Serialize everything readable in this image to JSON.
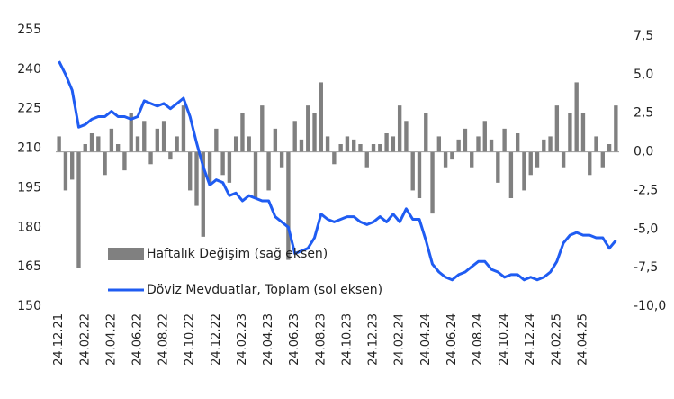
{
  "chart_data": {
    "type": "combo",
    "categories": [
      "24.12.21",
      null,
      null,
      null,
      "24.02.22",
      null,
      null,
      null,
      "24.04.22",
      null,
      null,
      null,
      "24.06.22",
      null,
      null,
      null,
      "24.08.22",
      null,
      null,
      null,
      "24.10.22",
      null,
      null,
      null,
      "24.12.22",
      null,
      null,
      null,
      "24.02.23",
      null,
      null,
      null,
      "24.04.23",
      null,
      null,
      null,
      "24.06.23",
      null,
      null,
      null,
      "24.08.23",
      null,
      null,
      null,
      "24.10.23",
      null,
      null,
      null,
      "24.12.23",
      null,
      null,
      null,
      "24.02.24",
      null,
      null,
      null,
      "24.04.24",
      null,
      null,
      null,
      "24.06.24",
      null,
      null,
      null,
      "24.08.24",
      null,
      null,
      null,
      "24.10.24",
      null,
      null,
      null,
      "24.12.24",
      null,
      null,
      null,
      "24.02.25",
      null,
      null,
      null,
      "24.04.25",
      null,
      null,
      null,
      null,
      null
    ],
    "series": [
      {
        "name": "Haftalık Değişim (sağ eksen)",
        "type": "bar",
        "axis": "y2",
        "color": "#808080",
        "values": [
          1.0,
          -2.5,
          -1.8,
          -7.5,
          0.5,
          1.2,
          1.0,
          -1.5,
          1.5,
          0.5,
          -1.2,
          2.5,
          1.0,
          2.0,
          -0.8,
          1.5,
          2.0,
          -0.5,
          1.0,
          3.0,
          -2.5,
          -3.5,
          -5.5,
          -2.0,
          1.5,
          -1.5,
          -2.0,
          1.0,
          2.5,
          1.0,
          -3.0,
          3.0,
          -2.5,
          1.5,
          -1.0,
          -7.0,
          2.0,
          0.8,
          3.0,
          2.5,
          4.5,
          1.0,
          -0.8,
          0.5,
          1.0,
          0.8,
          0.5,
          -1.0,
          0.5,
          0.5,
          1.2,
          1.0,
          3.0,
          2.0,
          -2.5,
          -3.0,
          2.5,
          -4.0,
          1.0,
          -1.0,
          -0.5,
          0.8,
          1.5,
          -1.0,
          1.0,
          2.0,
          0.8,
          -2.0,
          1.5,
          -3.0,
          1.2,
          -2.5,
          -1.5,
          -1.0,
          0.8,
          1.0,
          3.0,
          -1.0,
          2.5,
          4.5,
          2.5,
          -1.5,
          1.0,
          -1.0,
          0.5,
          3.0
        ]
      },
      {
        "name": "Döviz Mevduatlar, Toplam (sol eksen)",
        "type": "line",
        "axis": "y",
        "color": "#1f5cf2",
        "values": [
          243,
          238,
          232,
          218,
          219,
          221,
          222,
          222,
          224,
          222,
          222,
          221,
          222,
          228,
          227,
          226,
          227,
          225,
          227,
          229,
          222,
          212,
          203,
          196,
          198,
          197,
          192,
          193,
          190,
          192,
          191,
          190,
          190,
          184,
          182,
          180,
          170,
          171,
          172,
          176,
          185,
          183,
          182,
          183,
          184,
          184,
          182,
          181,
          182,
          184,
          182,
          185,
          182,
          187,
          183,
          183,
          175,
          166,
          163,
          161,
          160,
          162,
          163,
          165,
          167,
          167,
          164,
          163,
          161,
          162,
          162,
          160,
          161,
          160,
          161,
          163,
          167,
          174,
          177,
          178,
          177,
          177,
          176,
          176,
          172,
          175
        ]
      }
    ],
    "ylim": [
      150,
      255
    ],
    "yticks": [
      150,
      165,
      180,
      195,
      210,
      225,
      240,
      255
    ],
    "y2lim": [
      -10,
      7.5
    ],
    "y2ticks": [
      {
        "value": -10,
        "label": "-10,0"
      },
      {
        "value": -7.5,
        "label": "-7,5"
      },
      {
        "value": -5,
        "label": "-5,0"
      },
      {
        "value": -2.5,
        "label": "-2,5"
      },
      {
        "value": 0,
        "label": "0,0"
      },
      {
        "value": 2.5,
        "label": "2,5"
      },
      {
        "value": 5,
        "label": "5,0"
      },
      {
        "value": 7.5,
        "label": "7,5"
      }
    ],
    "grid": false,
    "legend": "bottom-left"
  }
}
